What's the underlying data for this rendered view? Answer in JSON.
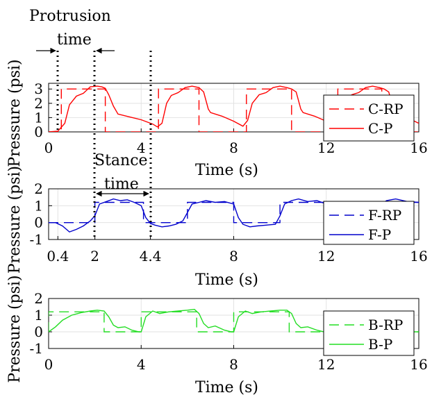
{
  "chart_data": [
    {
      "type": "line",
      "xlabel": "Time (s)",
      "ylabel": "Pressure (psi)",
      "xlim": [
        0,
        16
      ],
      "ylim": [
        0,
        3.4
      ],
      "xticks": [
        "0",
        "4",
        "8",
        "12",
        "16"
      ],
      "xtick_values": [
        0,
        4,
        8,
        12,
        16
      ],
      "yticks": [
        "0",
        "1",
        "2",
        "3"
      ],
      "ytick_values": [
        0,
        1,
        2,
        3
      ],
      "color": "#ff0000",
      "grid": true,
      "legend_position": "right",
      "series": [
        {
          "name": "C-RP",
          "style": "dashed",
          "x": [
            0,
            0.55,
            0.55,
            2.45,
            2.45,
            4.75,
            4.75,
            6.5,
            6.5,
            8.55,
            8.55,
            10.5,
            10.5,
            12.5,
            12.5,
            14.4,
            14.4,
            16
          ],
          "y": [
            0,
            0,
            3.0,
            3.0,
            0,
            0,
            3.0,
            3.0,
            0,
            0,
            3.0,
            3.0,
            0,
            0,
            3.0,
            3.0,
            0,
            0
          ]
        },
        {
          "name": "C-P",
          "style": "solid",
          "x": [
            0,
            0.4,
            0.7,
            0.9,
            1.2,
            1.5,
            1.8,
            2.1,
            2.3,
            2.45,
            2.6,
            2.8,
            3.0,
            3.5,
            4.0,
            4.5,
            4.7,
            4.9,
            5.1,
            5.3,
            5.6,
            5.9,
            6.2,
            6.5,
            6.7,
            6.9,
            7.0,
            7.5,
            8.0,
            8.4,
            8.6,
            8.8,
            9.1,
            9.4,
            9.7,
            10.0,
            10.3,
            10.5,
            10.7,
            10.9,
            11.0,
            11.5,
            12.0,
            12.4,
            12.6,
            12.8,
            13.1,
            13.4,
            13.7,
            14.0,
            14.3,
            14.5,
            14.7,
            14.9,
            15.0,
            15.5,
            16.0
          ],
          "y": [
            0,
            0.05,
            0.6,
            1.9,
            2.5,
            2.7,
            3.15,
            3.2,
            3.15,
            3.05,
            2.6,
            1.8,
            1.25,
            1.05,
            0.85,
            0.55,
            0.35,
            0.6,
            2.0,
            2.55,
            2.75,
            3.1,
            3.2,
            3.1,
            2.8,
            1.6,
            1.35,
            1.1,
            0.75,
            0.4,
            0.8,
            2.0,
            2.6,
            2.75,
            3.1,
            3.2,
            3.1,
            3.0,
            2.8,
            1.6,
            1.35,
            1.1,
            0.75,
            0.45,
            0.8,
            2.0,
            2.6,
            2.75,
            3.1,
            3.2,
            3.1,
            3.0,
            2.8,
            1.6,
            1.35,
            1.0,
            0.6
          ]
        }
      ],
      "annotations": {
        "top_label": "Protrusion",
        "arrow_label": "time"
      }
    },
    {
      "type": "line",
      "xlabel": "Time (s)",
      "ylabel": "Pressure (psi)",
      "xlim": [
        0,
        16
      ],
      "ylim": [
        -1,
        2
      ],
      "xticks": [
        "0.4",
        "2",
        "4.4",
        "8",
        "12",
        "16"
      ],
      "xtick_values": [
        0.4,
        2,
        4.4,
        8,
        12,
        16
      ],
      "yticks": [
        "-1",
        "0",
        "1",
        "2"
      ],
      "ytick_values": [
        -1,
        0,
        1,
        2
      ],
      "color": "#0000cc",
      "grid": true,
      "legend_position": "right",
      "series": [
        {
          "name": "F-RP",
          "style": "dashed",
          "x": [
            0,
            2.0,
            2.0,
            4.1,
            4.1,
            6.0,
            6.0,
            8.0,
            8.0,
            10.0,
            10.0,
            12.0,
            12.0,
            14.0,
            14.0,
            16
          ],
          "y": [
            0,
            0,
            1.2,
            1.2,
            0,
            0,
            1.2,
            1.2,
            0,
            0,
            1.2,
            1.2,
            0,
            0,
            1.2,
            1.2
          ]
        },
        {
          "name": "F-P",
          "style": "solid",
          "x": [
            0,
            0.3,
            0.6,
            0.9,
            1.2,
            1.5,
            1.8,
            2.0,
            2.2,
            2.5,
            2.8,
            3.1,
            3.4,
            3.7,
            4.0,
            4.2,
            4.4,
            4.6,
            4.9,
            5.2,
            5.5,
            5.8,
            6.0,
            6.2,
            6.5,
            6.8,
            7.2,
            7.6,
            8.0,
            8.2,
            8.4,
            8.7,
            9.0,
            9.4,
            9.8,
            10.0,
            10.2,
            10.5,
            10.8,
            11.2,
            11.6,
            12.0,
            12.3,
            12.6,
            12.9,
            13.2,
            13.6,
            14.0,
            14.3,
            14.6,
            15.0,
            15.5,
            16.0
          ],
          "y": [
            0,
            0,
            -0.2,
            -0.55,
            -0.4,
            -0.2,
            0.1,
            0.4,
            1.1,
            1.25,
            1.4,
            1.3,
            1.35,
            1.2,
            1.0,
            0.3,
            -0.05,
            -0.15,
            -0.25,
            -0.2,
            -0.1,
            0.1,
            0.6,
            1.1,
            1.2,
            1.3,
            1.2,
            1.25,
            1.1,
            0.3,
            -0.1,
            -0.25,
            -0.2,
            -0.15,
            -0.1,
            0.4,
            1.1,
            1.3,
            1.4,
            1.25,
            1.3,
            1.1,
            0.3,
            -0.1,
            -0.2,
            -0.25,
            -0.15,
            0.2,
            1.0,
            1.3,
            1.4,
            1.25,
            1.2
          ]
        }
      ],
      "annotations": {
        "top_label": "Stance",
        "arrow_label": "time"
      }
    },
    {
      "type": "line",
      "xlabel": "Time (s)",
      "ylabel": "Pressure (psi)",
      "xlim": [
        0,
        16
      ],
      "ylim": [
        -1,
        2
      ],
      "xticks": [
        "0",
        "4",
        "8",
        "12",
        "16"
      ],
      "xtick_values": [
        0,
        4,
        8,
        12,
        16
      ],
      "yticks": [
        "-1",
        "0",
        "1",
        "2"
      ],
      "ytick_values": [
        -1,
        0,
        1,
        2
      ],
      "color": "#22dd22",
      "grid": true,
      "legend_position": "right",
      "series": [
        {
          "name": "B-RP",
          "style": "dashed",
          "x": [
            0,
            0,
            2.4,
            2.4,
            4.0,
            4.0,
            6.4,
            6.4,
            8.0,
            8.0,
            10.4,
            10.4,
            12.0,
            12.0,
            16
          ],
          "y": [
            0,
            1.2,
            1.2,
            0,
            0,
            1.2,
            1.2,
            0,
            0,
            1.2,
            1.2,
            0,
            0,
            0,
            0
          ]
        },
        {
          "name": "B-P",
          "style": "solid",
          "x": [
            0,
            0.3,
            0.6,
            1.0,
            1.4,
            1.8,
            2.1,
            2.4,
            2.6,
            2.8,
            3.0,
            3.3,
            3.6,
            3.9,
            4.0,
            4.2,
            4.5,
            4.8,
            5.2,
            5.6,
            6.0,
            6.3,
            6.5,
            6.7,
            6.9,
            7.2,
            7.6,
            7.9,
            8.0,
            8.2,
            8.5,
            8.8,
            9.2,
            9.6,
            10.0,
            10.3,
            10.5,
            10.7,
            10.9,
            11.2,
            11.6,
            11.9,
            12.0,
            13.0,
            14.0,
            15.0,
            16.0
          ],
          "y": [
            0,
            0.3,
            0.7,
            1.0,
            1.15,
            1.25,
            1.3,
            1.25,
            0.9,
            0.4,
            0.25,
            0.3,
            0.1,
            0.0,
            0.0,
            0.9,
            1.25,
            1.1,
            1.2,
            1.25,
            1.3,
            1.35,
            1.1,
            0.5,
            0.25,
            0.35,
            0.1,
            0.0,
            0.0,
            0.9,
            1.25,
            1.1,
            1.2,
            1.25,
            1.3,
            1.3,
            1.1,
            0.5,
            0.25,
            0.3,
            0.1,
            0.0,
            0.0,
            0.0,
            0.0,
            0.0,
            0.0
          ]
        }
      ],
      "annotations": {}
    }
  ]
}
